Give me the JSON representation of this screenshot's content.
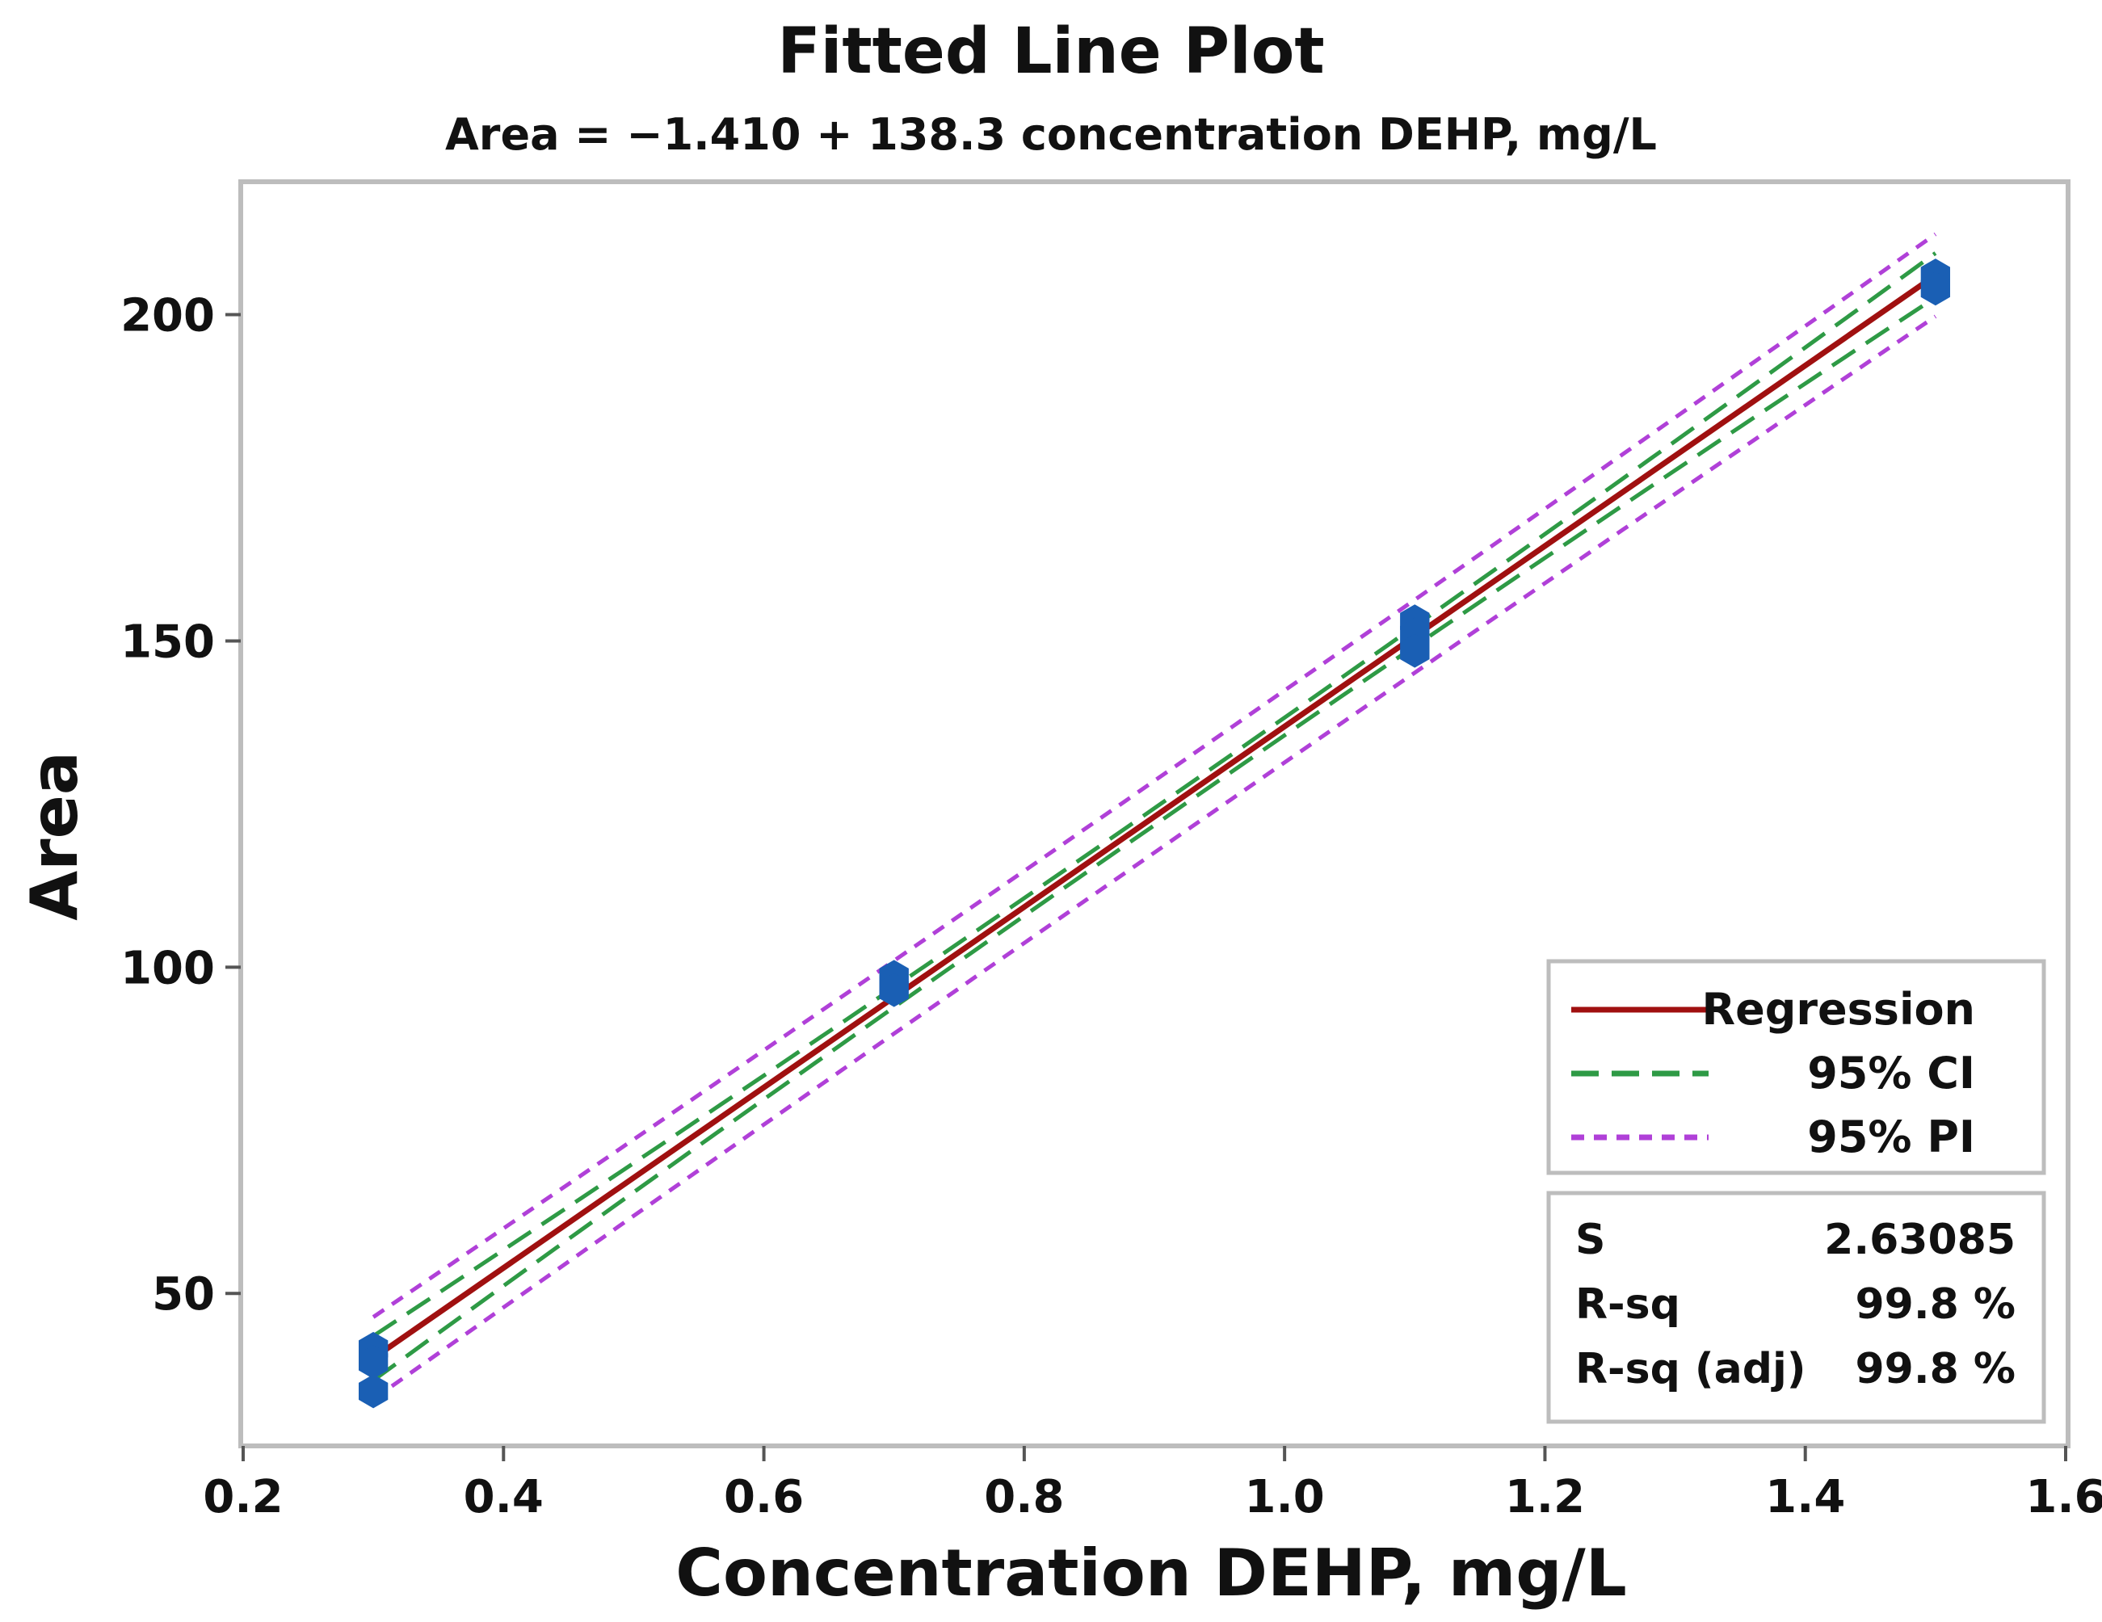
{
  "chart_data": {
    "type": "scatter",
    "title": "Fitted Line Plot",
    "subtitle": "Area = −1.410 + 138.3 concentration DEHP, mg/L",
    "xlabel": "Concentration DEHP, mg/L",
    "ylabel": "Area",
    "xlim": [
      0.2,
      1.6
    ],
    "ylim": [
      27,
      220
    ],
    "x_ticks": [
      0.2,
      0.4,
      0.6,
      0.8,
      1.0,
      1.2,
      1.4,
      1.6
    ],
    "x_tick_labels": [
      "0.2",
      "0.4",
      "0.6",
      "0.8",
      "1.0",
      "1.2",
      "1.4",
      "1.6"
    ],
    "y_ticks": [
      50,
      100,
      150,
      200
    ],
    "y_tick_labels": [
      "50",
      "100",
      "150",
      "200"
    ],
    "grid": false,
    "points": [
      {
        "x": 0.3,
        "y": 41.5
      },
      {
        "x": 0.3,
        "y": 39.5
      },
      {
        "x": 0.3,
        "y": 35.0
      },
      {
        "x": 0.7,
        "y": 98.5
      },
      {
        "x": 0.7,
        "y": 96.5
      },
      {
        "x": 1.1,
        "y": 153.0
      },
      {
        "x": 1.1,
        "y": 151.0
      },
      {
        "x": 1.1,
        "y": 148.5
      },
      {
        "x": 1.5,
        "y": 206.0
      },
      {
        "x": 1.5,
        "y": 204.0
      }
    ],
    "regression": {
      "intercept": -1.41,
      "slope": 138.3,
      "x_range": [
        0.3,
        1.5
      ]
    },
    "ci_halfwidth": {
      "at_ends": 3.4,
      "at_center": 1.3
    },
    "pi_halfwidth": {
      "at_ends": 6.3,
      "at_center": 5.5
    },
    "legend": {
      "placement": "bottom-right",
      "entries": [
        {
          "label": "Regression",
          "style": "solid",
          "color": "#a01010"
        },
        {
          "label": "95% CI",
          "style": "dashed",
          "color": "#2e9a45"
        },
        {
          "label": "95% PI",
          "style": "dotted",
          "color": "#b040d8"
        }
      ]
    },
    "stats": [
      {
        "label": "S",
        "value": "2.63085"
      },
      {
        "label": "R-sq",
        "value": "99.8 %"
      },
      {
        "label": "R-sq (adj)",
        "value": "99.8 %"
      }
    ],
    "colors": {
      "point": "#1a5fb4",
      "frame": "#bdbdbd",
      "regression": "#a01010",
      "ci": "#2e9a45",
      "pi": "#b040d8"
    }
  }
}
